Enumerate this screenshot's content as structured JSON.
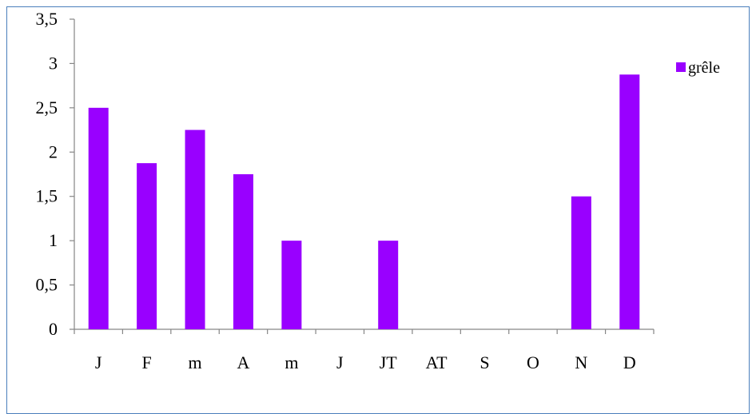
{
  "chart_data": {
    "type": "bar",
    "categories": [
      "J",
      "F",
      "m",
      "A",
      "m",
      "J",
      "JT",
      "AT",
      "S",
      "O",
      "N",
      "D"
    ],
    "series": [
      {
        "name": "grêle",
        "values": [
          2.5,
          1.875,
          2.25,
          1.75,
          1.0,
          0,
          1.0,
          0,
          0,
          0,
          1.5,
          2.875
        ]
      }
    ],
    "ylim": [
      0,
      3.5
    ],
    "yticks": [
      "0",
      "0,5",
      "1",
      "1,5",
      "2",
      "2,5",
      "3",
      "3,5"
    ],
    "ytick_values": [
      0,
      0.5,
      1,
      1.5,
      2,
      2.5,
      3,
      3.5
    ],
    "grid": false,
    "legend_position": "right",
    "title": "",
    "xlabel": "",
    "ylabel": "",
    "colors": {
      "bar": "#9900FF",
      "axis": "#868686",
      "border": "#4A7EBB"
    }
  }
}
